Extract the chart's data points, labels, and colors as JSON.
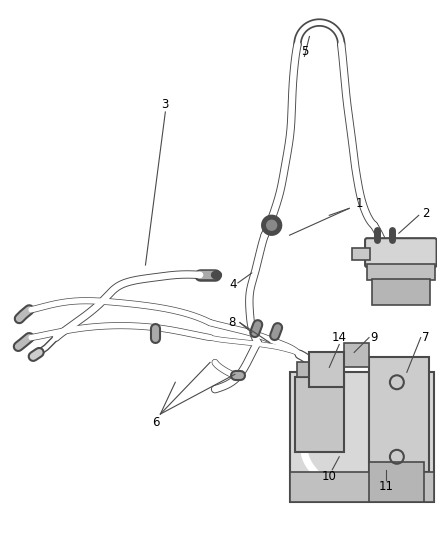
{
  "bg_color": "#ffffff",
  "fig_width": 4.38,
  "fig_height": 5.33,
  "dpi": 100,
  "line_color": "#4a4a4a",
  "label_color": "#000000",
  "label_fontsize": 8.5
}
